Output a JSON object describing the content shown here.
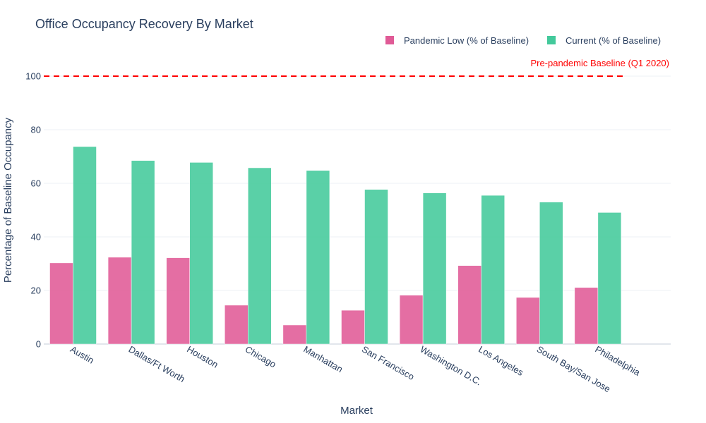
{
  "chart_data": {
    "type": "bar",
    "title": "Office Occupancy Recovery By Market",
    "xlabel": "Market",
    "ylabel": "Percentage of Baseline Occupancy",
    "ylim": [
      0,
      110
    ],
    "yticks": [
      "0",
      "20",
      "40",
      "60",
      "80",
      "100"
    ],
    "grid": "horizontal",
    "legend_position": "top-right",
    "categories": [
      "Austin",
      "Dallas/Ft Worth",
      "Houston",
      "Chicago",
      "Manhattan",
      "San Francisco",
      "Washington D.C.",
      "Los Angeles",
      "South Bay/San Jose",
      "Philadelphia"
    ],
    "series": [
      {
        "name": "Pandemic Low (% of Baseline)",
        "color": "#e05a96",
        "values": [
          30.3,
          32.4,
          32.2,
          14.5,
          7.1,
          12.6,
          18.2,
          29.3,
          17.4,
          21.1
        ]
      },
      {
        "name": "Current (% of Baseline)",
        "color": "#43c99b",
        "values": [
          73.7,
          68.5,
          67.8,
          65.8,
          64.8,
          57.7,
          56.4,
          55.5,
          53.0,
          49.1
        ]
      }
    ],
    "baseline": {
      "value": 100,
      "label": "Pre-pandemic Baseline (Q1 2020)",
      "color": "#ff0000",
      "style": "dashed"
    }
  }
}
